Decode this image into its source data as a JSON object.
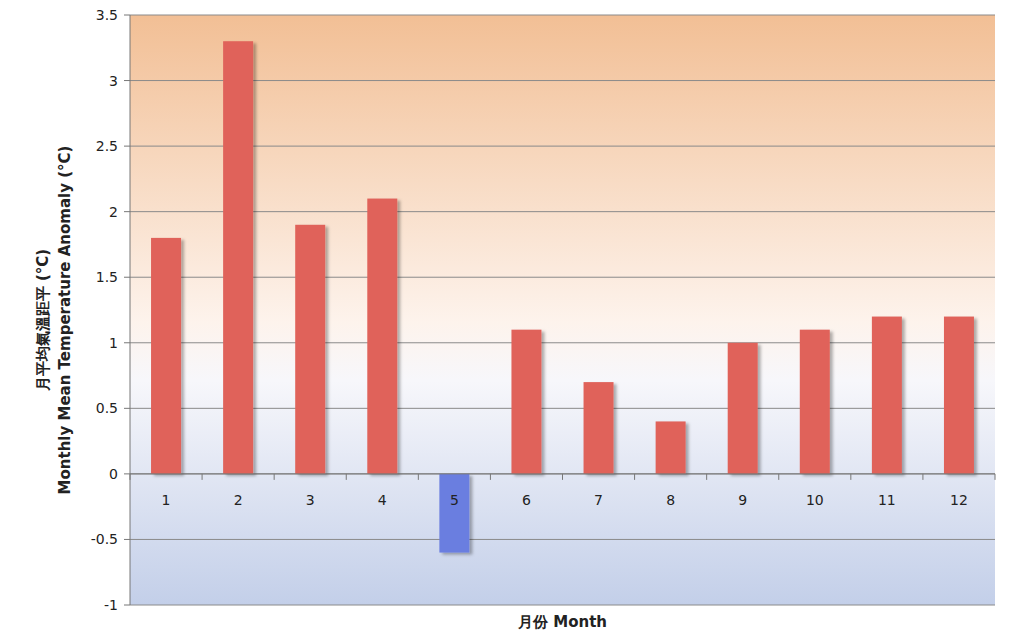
{
  "chart_data": {
    "type": "bar",
    "categories": [
      "1",
      "2",
      "3",
      "4",
      "5",
      "6",
      "7",
      "8",
      "9",
      "10",
      "11",
      "12"
    ],
    "values": [
      1.8,
      3.3,
      1.9,
      2.1,
      -0.6,
      1.1,
      0.7,
      0.4,
      1.0,
      1.1,
      1.2,
      1.2
    ],
    "colors": [
      "#e0625a",
      "#e0625a",
      "#e0625a",
      "#e0625a",
      "#6a7ee0",
      "#e0625a",
      "#e0625a",
      "#e0625a",
      "#e0625a",
      "#e0625a",
      "#e0625a",
      "#e0625a"
    ],
    "ylim": [
      -1,
      3.5
    ],
    "yticks": [
      -1,
      -0.5,
      0,
      0.5,
      1,
      1.5,
      2,
      2.5,
      3,
      3.5
    ],
    "grid": true,
    "x_label": "月份  Month",
    "y_label": [
      "月平均氣溫距平 (°C)",
      "Monthly Mean Temperature Anomaly (°C)"
    ]
  }
}
